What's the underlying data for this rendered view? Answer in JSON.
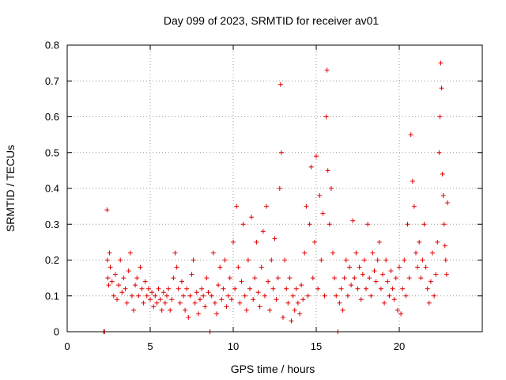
{
  "chart_data": {
    "type": "scatter",
    "title": "Day 099 of 2023, SRMTID for receiver av01",
    "xlabel": "GPS time / hours",
    "ylabel": "SRMTID / TECUs",
    "xlim": [
      0,
      25
    ],
    "ylim": [
      0,
      0.8
    ],
    "xticks": [
      0,
      5,
      10,
      15,
      20
    ],
    "xtick_labels": [
      "0",
      "5",
      "10",
      "15",
      "20"
    ],
    "yticks": [
      0,
      0.1,
      0.2,
      0.3,
      0.4,
      0.5,
      0.6,
      0.7,
      0.8
    ],
    "ytick_labels": [
      "0",
      "0.1",
      "0.2",
      "0.3",
      "0.4",
      "0.5",
      "0.6",
      "0.7",
      "0.8"
    ],
    "grid": true,
    "marker": "+",
    "color": "#e00000",
    "series": [
      {
        "name": "av01",
        "x": [
          2.2,
          2.25,
          2.4,
          2.42,
          2.45,
          2.5,
          2.55,
          2.6,
          2.7,
          2.8,
          2.9,
          3.0,
          3.1,
          3.2,
          3.3,
          3.4,
          3.5,
          3.6,
          3.7,
          3.8,
          3.9,
          4.0,
          4.1,
          4.2,
          4.3,
          4.4,
          4.5,
          4.6,
          4.7,
          4.8,
          4.9,
          5.0,
          5.1,
          5.2,
          5.3,
          5.4,
          5.5,
          5.6,
          5.7,
          5.8,
          5.9,
          6.0,
          6.1,
          6.2,
          6.3,
          6.4,
          6.5,
          6.6,
          6.7,
          6.8,
          6.9,
          7.0,
          7.1,
          7.2,
          7.3,
          7.4,
          7.5,
          7.6,
          7.7,
          7.8,
          7.9,
          8.0,
          8.1,
          8.2,
          8.3,
          8.4,
          8.5,
          8.6,
          8.7,
          8.8,
          8.9,
          9.0,
          9.1,
          9.2,
          9.3,
          9.4,
          9.5,
          9.6,
          9.7,
          9.8,
          9.9,
          10.0,
          10.1,
          10.2,
          10.3,
          10.4,
          10.5,
          10.6,
          10.7,
          10.8,
          10.9,
          11.0,
          11.1,
          11.2,
          11.3,
          11.4,
          11.5,
          11.6,
          11.7,
          11.8,
          11.9,
          12.0,
          12.1,
          12.2,
          12.3,
          12.4,
          12.5,
          12.6,
          12.7,
          12.8,
          12.85,
          12.9,
          13.0,
          13.1,
          13.2,
          13.3,
          13.4,
          13.5,
          13.6,
          13.7,
          13.8,
          13.9,
          14.0,
          14.1,
          14.2,
          14.3,
          14.4,
          14.5,
          14.6,
          14.7,
          14.8,
          14.9,
          15.0,
          15.1,
          15.2,
          15.3,
          15.4,
          15.5,
          15.6,
          15.65,
          15.7,
          15.8,
          15.9,
          16.0,
          16.1,
          16.2,
          16.3,
          16.4,
          16.5,
          16.6,
          16.7,
          16.8,
          16.9,
          17.0,
          17.1,
          17.2,
          17.3,
          17.4,
          17.5,
          17.6,
          17.7,
          17.8,
          17.9,
          18.0,
          18.1,
          18.2,
          18.3,
          18.4,
          18.5,
          18.6,
          18.7,
          18.8,
          18.9,
          19.0,
          19.1,
          19.2,
          19.3,
          19.4,
          19.5,
          19.6,
          19.7,
          19.8,
          19.9,
          20.0,
          20.1,
          20.2,
          20.3,
          20.4,
          20.5,
          20.6,
          20.7,
          20.8,
          20.9,
          21.0,
          21.1,
          21.2,
          21.3,
          21.4,
          21.5,
          21.6,
          21.7,
          21.8,
          21.9,
          22.0,
          22.1,
          22.2,
          22.3,
          22.4,
          22.45,
          22.5,
          22.55,
          22.6,
          22.65,
          22.7,
          22.75,
          22.8,
          22.85,
          22.9
        ],
        "y": [
          0.0,
          0.0,
          0.34,
          0.2,
          0.15,
          0.13,
          0.22,
          0.18,
          0.14,
          0.1,
          0.16,
          0.09,
          0.13,
          0.2,
          0.11,
          0.15,
          0.12,
          0.08,
          0.17,
          0.22,
          0.1,
          0.06,
          0.13,
          0.15,
          0.1,
          0.18,
          0.12,
          0.08,
          0.14,
          0.1,
          0.12,
          0.09,
          0.11,
          0.07,
          0.1,
          0.08,
          0.12,
          0.09,
          0.06,
          0.11,
          0.08,
          0.1,
          0.12,
          0.06,
          0.09,
          0.15,
          0.22,
          0.18,
          0.12,
          0.08,
          0.14,
          0.1,
          0.06,
          0.12,
          0.04,
          0.1,
          0.16,
          0.2,
          0.08,
          0.11,
          0.05,
          0.09,
          0.12,
          0.1,
          0.07,
          0.15,
          0.11,
          0.0,
          0.1,
          0.22,
          0.08,
          0.05,
          0.13,
          0.18,
          0.09,
          0.12,
          0.2,
          0.07,
          0.1,
          0.15,
          0.09,
          0.25,
          0.12,
          0.35,
          0.18,
          0.08,
          0.14,
          0.3,
          0.1,
          0.06,
          0.2,
          0.12,
          0.32,
          0.09,
          0.15,
          0.25,
          0.11,
          0.07,
          0.18,
          0.28,
          0.1,
          0.35,
          0.14,
          0.06,
          0.2,
          0.12,
          0.26,
          0.09,
          0.15,
          0.4,
          0.69,
          0.5,
          0.04,
          0.2,
          0.12,
          0.08,
          0.15,
          0.03,
          0.1,
          0.06,
          0.12,
          0.08,
          0.05,
          0.13,
          0.09,
          0.22,
          0.35,
          0.1,
          0.3,
          0.46,
          0.15,
          0.25,
          0.49,
          0.12,
          0.38,
          0.2,
          0.33,
          0.1,
          0.6,
          0.73,
          0.45,
          0.3,
          0.4,
          0.22,
          0.15,
          0.1,
          0.0,
          0.08,
          0.12,
          0.06,
          0.15,
          0.2,
          0.1,
          0.18,
          0.13,
          0.31,
          0.15,
          0.22,
          0.12,
          0.18,
          0.09,
          0.16,
          0.2,
          0.12,
          0.3,
          0.15,
          0.1,
          0.22,
          0.17,
          0.14,
          0.2,
          0.25,
          0.12,
          0.16,
          0.08,
          0.2,
          0.14,
          0.1,
          0.17,
          0.12,
          0.09,
          0.15,
          0.06,
          0.18,
          0.05,
          0.12,
          0.2,
          0.1,
          0.3,
          0.15,
          0.55,
          0.42,
          0.35,
          0.22,
          0.18,
          0.25,
          0.15,
          0.2,
          0.3,
          0.18,
          0.12,
          0.08,
          0.14,
          0.22,
          0.1,
          0.16,
          0.25,
          0.5,
          0.6,
          0.75,
          0.68,
          0.44,
          0.38,
          0.3,
          0.24,
          0.2,
          0.16,
          0.36
        ]
      }
    ]
  }
}
